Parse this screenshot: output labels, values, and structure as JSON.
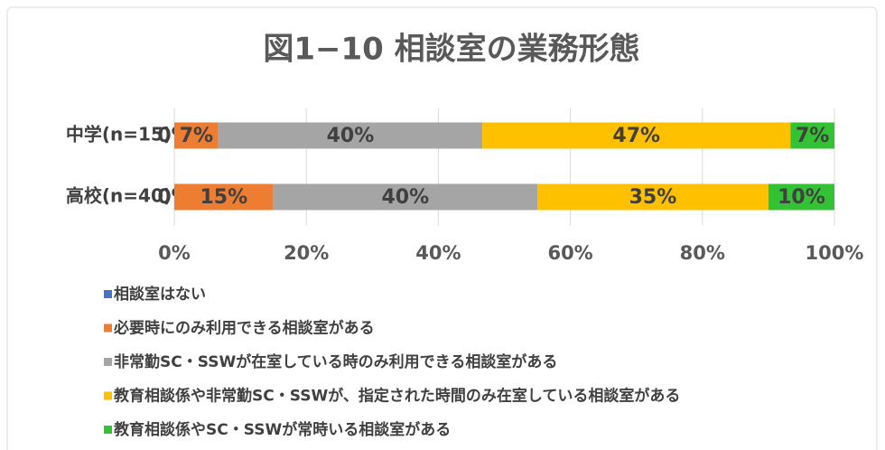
{
  "chart_data": {
    "type": "stacked_bar_horizontal",
    "title": "図1−10 相談室の業務形態",
    "categories": [
      "中学(n=15)",
      "高校(n=40)"
    ],
    "series": [
      {
        "name": "相談室はない",
        "color": "#4472c4",
        "values": [
          0,
          0
        ],
        "value_labels": [
          "0%",
          "0%"
        ]
      },
      {
        "name": "必要時にのみ利用できる相談室がある",
        "color": "#ed7d31",
        "values": [
          6.67,
          15
        ],
        "value_labels": [
          "7%",
          "15%"
        ]
      },
      {
        "name": "非常勤SC・SSWが在室している時のみ利用できる相談室がある",
        "color": "#a5a5a5",
        "values": [
          40,
          40
        ],
        "value_labels": [
          "40%",
          "40%"
        ]
      },
      {
        "name": "教育相談係や非常勤SC・SSWが、指定された時間のみ在室している相談室がある",
        "color": "#ffc000",
        "values": [
          46.67,
          35
        ],
        "value_labels": [
          "47%",
          "35%"
        ]
      },
      {
        "name": "教育相談係やSC・SSWが常時いる相談室がある",
        "color": "#33c233",
        "values": [
          6.67,
          10
        ],
        "value_labels": [
          "7%",
          "10%"
        ]
      }
    ],
    "xlim": [
      0,
      100
    ],
    "xticks": [
      {
        "value": 0,
        "label": "0%"
      },
      {
        "value": 20,
        "label": "20%"
      },
      {
        "value": 40,
        "label": "40%"
      },
      {
        "value": 60,
        "label": "60%"
      },
      {
        "value": 80,
        "label": "80%"
      },
      {
        "value": 100,
        "label": "100%"
      }
    ],
    "grid": true,
    "legend": "bottom"
  }
}
